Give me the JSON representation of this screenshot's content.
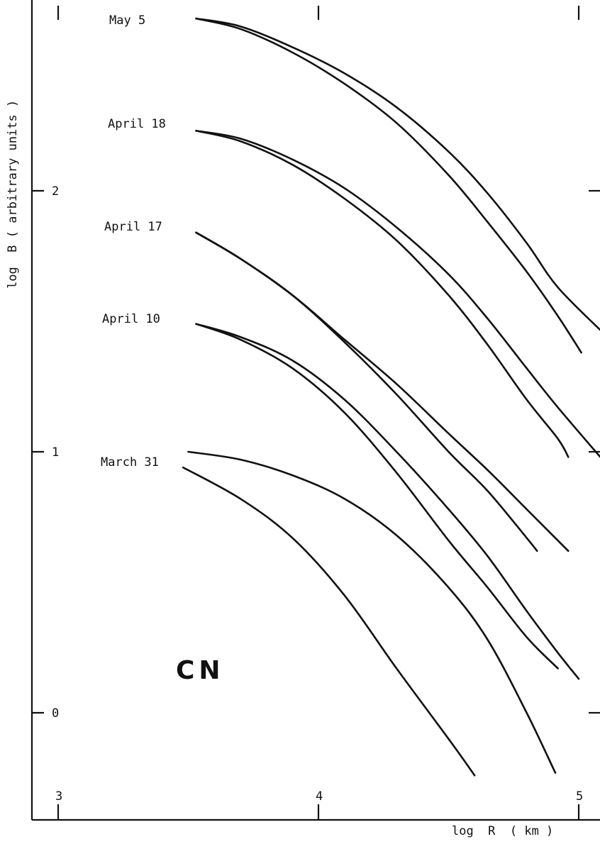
{
  "chart_data": {
    "type": "line",
    "title": "",
    "xlabel": "log  R  ( km )",
    "ylabel": "log  B ( arbitrary units )",
    "annotation": "CN",
    "xlim": [
      2.9,
      5.1
    ],
    "ylim": [
      -0.3,
      2.7
    ],
    "x_ticks": [
      3,
      4,
      5
    ],
    "y_ticks": [
      0,
      1,
      2
    ],
    "grid": false,
    "legend": "none",
    "labels": [
      {
        "text": "May 5"
      },
      {
        "text": "April 18"
      },
      {
        "text": "April 17"
      },
      {
        "text": "April 10"
      },
      {
        "text": "March 31"
      }
    ],
    "series": [
      {
        "name": "May 5",
        "x": [
          3.53,
          3.7,
          3.9,
          4.1,
          4.3,
          4.5,
          4.65,
          4.8,
          4.92,
          5.1
        ],
        "y": [
          2.66,
          2.63,
          2.55,
          2.45,
          2.32,
          2.15,
          1.99,
          1.8,
          1.63,
          1.45
        ]
      },
      {
        "name": "May 5",
        "x": [
          3.53,
          3.7,
          3.9,
          4.1,
          4.3,
          4.5,
          4.65,
          4.8,
          4.92,
          5.01
        ],
        "y": [
          2.66,
          2.62,
          2.53,
          2.41,
          2.26,
          2.06,
          1.88,
          1.69,
          1.52,
          1.38
        ]
      },
      {
        "name": "April 18",
        "x": [
          3.53,
          3.7,
          3.9,
          4.1,
          4.3,
          4.5,
          4.65,
          4.8,
          4.92,
          5.1
        ],
        "y": [
          2.23,
          2.2,
          2.12,
          2.01,
          1.86,
          1.68,
          1.51,
          1.32,
          1.17,
          0.96
        ]
      },
      {
        "name": "April 18",
        "x": [
          3.53,
          3.7,
          3.9,
          4.1,
          4.3,
          4.5,
          4.65,
          4.8,
          4.92,
          4.96
        ],
        "y": [
          2.23,
          2.19,
          2.1,
          1.97,
          1.81,
          1.6,
          1.41,
          1.2,
          1.05,
          0.98
        ]
      },
      {
        "name": "April 17",
        "x": [
          3.53,
          3.7,
          3.9,
          4.1,
          4.3,
          4.5,
          4.65,
          4.8,
          4.9,
          4.96
        ],
        "y": [
          1.84,
          1.74,
          1.6,
          1.43,
          1.26,
          1.07,
          0.93,
          0.78,
          0.68,
          0.62
        ]
      },
      {
        "name": "April 17",
        "x": [
          3.53,
          3.7,
          3.9,
          4.1,
          4.3,
          4.5,
          4.65,
          4.8,
          4.84
        ],
        "y": [
          1.84,
          1.74,
          1.6,
          1.42,
          1.22,
          1.0,
          0.85,
          0.67,
          0.62
        ]
      },
      {
        "name": "April 10",
        "x": [
          3.53,
          3.7,
          3.9,
          4.1,
          4.3,
          4.5,
          4.65,
          4.8,
          4.92,
          5.0
        ],
        "y": [
          1.49,
          1.44,
          1.35,
          1.2,
          1.0,
          0.78,
          0.6,
          0.39,
          0.23,
          0.13
        ]
      },
      {
        "name": "April 10",
        "x": [
          3.53,
          3.7,
          3.9,
          4.1,
          4.3,
          4.5,
          4.65,
          4.8,
          4.92
        ],
        "y": [
          1.49,
          1.43,
          1.32,
          1.15,
          0.92,
          0.66,
          0.48,
          0.29,
          0.17
        ]
      },
      {
        "name": "March 31",
        "x": [
          3.5,
          3.7,
          3.9,
          4.1,
          4.3,
          4.5,
          4.65,
          4.8,
          4.91
        ],
        "y": [
          1.0,
          0.97,
          0.91,
          0.82,
          0.68,
          0.48,
          0.28,
          0.0,
          -0.23
        ]
      },
      {
        "name": "March 31",
        "x": [
          3.48,
          3.7,
          3.9,
          4.1,
          4.3,
          4.5,
          4.6
        ],
        "y": [
          0.94,
          0.82,
          0.67,
          0.45,
          0.17,
          -0.1,
          -0.24
        ]
      }
    ]
  }
}
